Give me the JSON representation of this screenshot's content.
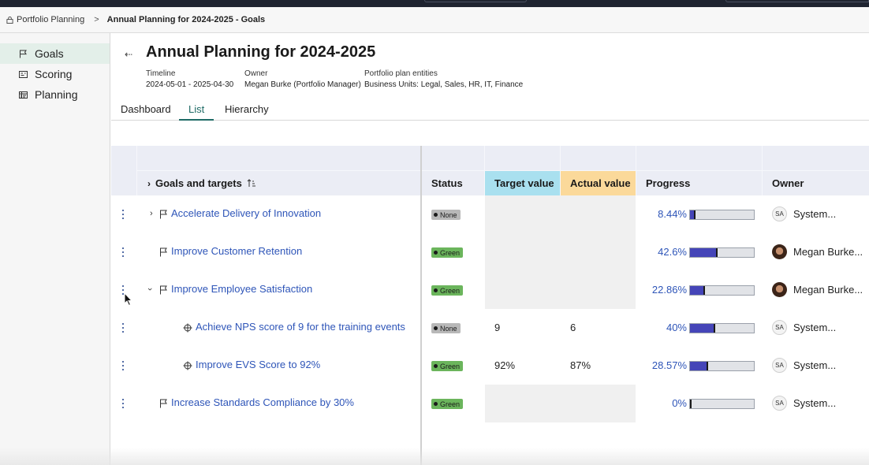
{
  "breadcrumb": {
    "home": "Portfolio Planning",
    "current": "Annual Planning for 2024-2025 - Goals"
  },
  "sidebar": {
    "items": [
      {
        "label": "Goals",
        "icon": "flag-icon",
        "active": true
      },
      {
        "label": "Scoring",
        "icon": "scoring-icon",
        "active": false
      },
      {
        "label": "Planning",
        "icon": "planning-icon",
        "active": false
      }
    ]
  },
  "header": {
    "title": "Annual Planning for 2024-2025",
    "meta": [
      {
        "label": "Timeline",
        "value": "2024-05-01 - 2025-04-30"
      },
      {
        "label": "Owner",
        "value": "Megan Burke (Portfolio Manager)"
      },
      {
        "label": "Portfolio plan entities",
        "value": "Business Units: Legal, Sales, HR, IT, Finance"
      }
    ]
  },
  "tabs": [
    {
      "label": "Dashboard",
      "active": false
    },
    {
      "label": "List",
      "active": true
    },
    {
      "label": "Hierarchy",
      "active": false
    }
  ],
  "table": {
    "columns": {
      "goals": "Goals and targets",
      "status": "Status",
      "target": "Target value",
      "actual": "Actual value",
      "progress": "Progress",
      "owner": "Owner"
    },
    "rows": [
      {
        "name": "Accelerate Delivery of Innovation",
        "status": "None",
        "target": "",
        "actual": "",
        "progress": "8.44%",
        "progress_value": 0.0844,
        "owner": "System...",
        "owner_initials": "SA"
      },
      {
        "name": "Improve Customer Retention",
        "status": "Green",
        "target": "",
        "actual": "",
        "progress": "42.6%",
        "progress_value": 0.426,
        "owner": "Megan Burke...",
        "owner_initials": ""
      },
      {
        "name": "Improve Employee Satisfaction",
        "status": "Green",
        "target": "",
        "actual": "",
        "progress": "22.86%",
        "progress_value": 0.2286,
        "owner": "Megan Burke...",
        "owner_initials": ""
      },
      {
        "name": "Achieve NPS score of 9 for the training events",
        "status": "None",
        "target": "9",
        "actual": "6",
        "progress": "40%",
        "progress_value": 0.4,
        "owner": "System...",
        "owner_initials": "SA"
      },
      {
        "name": "Improve EVS Score to 92%",
        "status": "Green",
        "target": "92%",
        "actual": "87%",
        "progress": "28.57%",
        "progress_value": 0.2857,
        "owner": "System...",
        "owner_initials": "SA"
      },
      {
        "name": "Increase Standards Compliance by 30%",
        "status": "Green",
        "target": "",
        "actual": "",
        "progress": "0%",
        "progress_value": 0.0,
        "owner": "System...",
        "owner_initials": "SA"
      }
    ]
  },
  "colors": {
    "accent": "#1f6b66",
    "link": "#2e55b8",
    "status_green": "#6bb55c",
    "status_none": "#b8b8b8",
    "target_header": "#a9e0ef",
    "actual_header": "#fbd99a",
    "progress_fill": "#4545b8"
  }
}
